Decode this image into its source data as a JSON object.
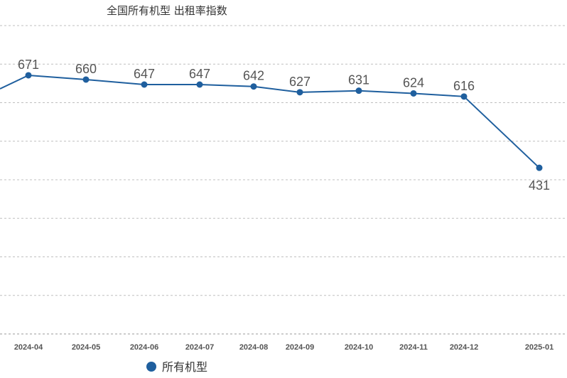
{
  "chart_data": {
    "type": "line",
    "title": "全国所有机型  出租率指数",
    "categories": [
      "",
      "2024-04",
      "2024-05",
      "2024-06",
      "2024-07",
      "2024-08",
      "2024-09",
      "2024-10",
      "2024-11",
      "2024-12",
      "2025-01"
    ],
    "tick_labels": [
      "2024-04",
      "2024-05",
      "2024-06",
      "2024-07",
      "2024-08",
      "2024-09",
      "2024-10",
      "2024-11",
      "2024-12",
      "2025-01"
    ],
    "series": [
      {
        "name": "所有机型",
        "values": [
          636,
          671,
          660,
          647,
          647,
          642,
          627,
          631,
          624,
          616,
          431
        ],
        "labels": [
          null,
          "671",
          "660",
          "647",
          "647",
          "642",
          "627",
          "631",
          "624",
          "616",
          "431"
        ]
      }
    ],
    "ylim": [
      0,
      800
    ],
    "grid": true,
    "legend_position": "bottom-left",
    "series_color": "#1f5f9e"
  }
}
